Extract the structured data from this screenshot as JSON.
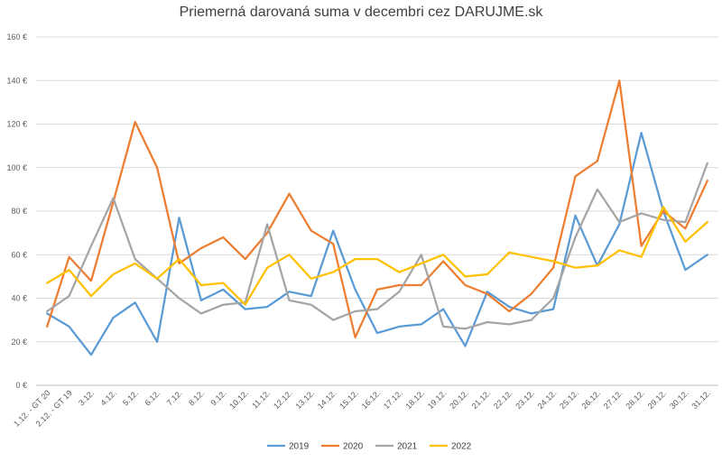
{
  "chart_data": {
    "type": "line",
    "title": "Priemerná darovaná suma v decembri cez DARUJME.sk",
    "xlabel": "",
    "ylabel": "",
    "ylim": [
      0,
      160
    ],
    "yticks": [
      "0 €",
      "20 €",
      "40 €",
      "60 €",
      "80 €",
      "100 €",
      "120 €",
      "140 €",
      "160 €"
    ],
    "grid": true,
    "legend_position": "bottom",
    "categories": [
      "1.12. - GT 20",
      "2.12. - GT 19",
      "3.12.",
      "4.12.",
      "5.12.",
      "6.12.",
      "7.12.",
      "8.12.",
      "9.12.",
      "10.12.",
      "11.12.",
      "12.12.",
      "13.12.",
      "14.12.",
      "15.12.",
      "16.12.",
      "17.12.",
      "18.12.",
      "19.12.",
      "20.12.",
      "21.12.",
      "22.12.",
      "23.12.",
      "24.12.",
      "25.12.",
      "26.12.",
      "27.12.",
      "28.12.",
      "29.12.",
      "30.12.",
      "31.12."
    ],
    "series": [
      {
        "name": "2019",
        "color": "#5B9BD5",
        "values": [
          33,
          27,
          14,
          31,
          38,
          20,
          77,
          39,
          44,
          35,
          36,
          43,
          41,
          71,
          44,
          24,
          27,
          28,
          35,
          18,
          43,
          36,
          33,
          35,
          78,
          55,
          74,
          116,
          80,
          53,
          60
        ]
      },
      {
        "name": "2020",
        "color": "#ED7D31",
        "values": [
          27,
          59,
          48,
          84,
          121,
          100,
          56,
          63,
          68,
          58,
          70,
          88,
          71,
          65,
          22,
          44,
          46,
          46,
          57,
          46,
          42,
          34,
          42,
          54,
          96,
          103,
          140,
          64,
          80,
          72,
          94
        ]
      },
      {
        "name": "2021",
        "color": "#A5A5A5",
        "values": [
          34,
          41,
          64,
          86,
          58,
          49,
          40,
          33,
          37,
          38,
          74,
          39,
          37,
          30,
          34,
          35,
          43,
          60,
          27,
          26,
          29,
          28,
          30,
          40,
          68,
          90,
          75,
          79,
          76,
          75,
          102
        ]
      },
      {
        "name": "2022",
        "color": "#FFC000",
        "values": [
          47,
          53,
          41,
          51,
          56,
          49,
          58,
          46,
          47,
          37,
          54,
          60,
          49,
          52,
          58,
          58,
          52,
          56,
          60,
          50,
          51,
          61,
          59,
          57,
          54,
          55,
          62,
          59,
          82,
          66,
          75
        ]
      }
    ]
  }
}
